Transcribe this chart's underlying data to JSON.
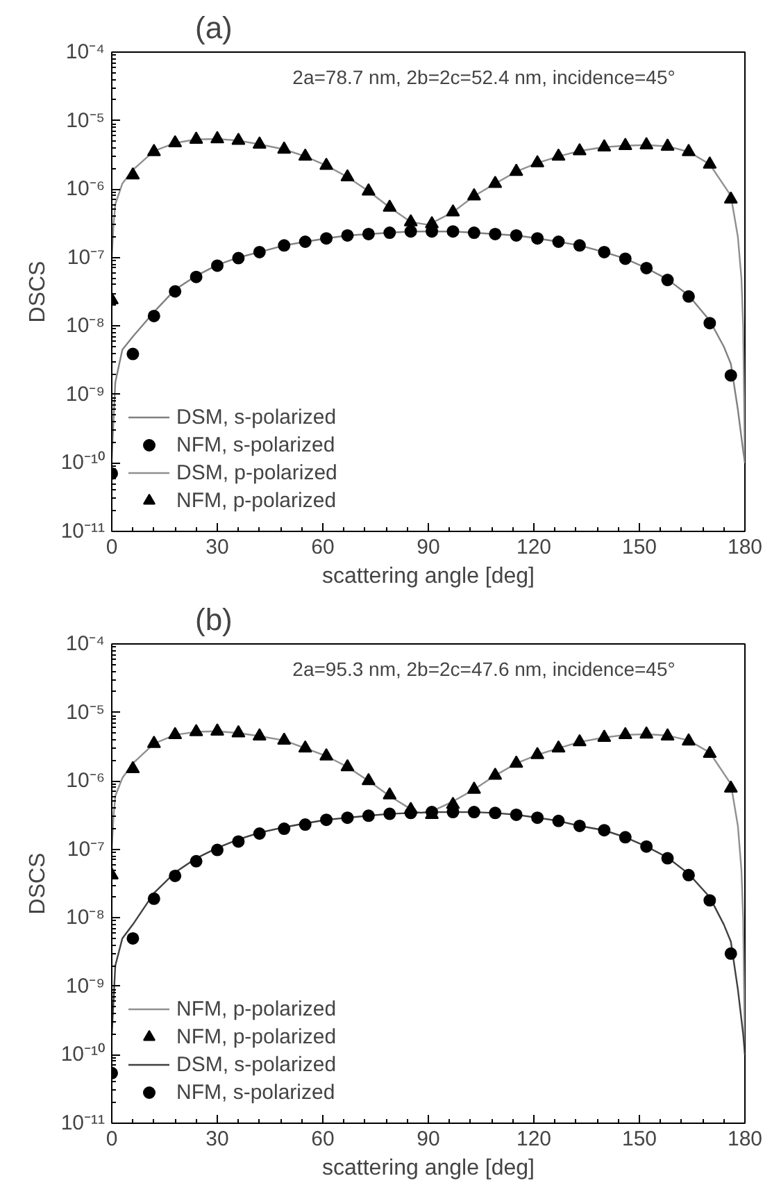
{
  "chart_data": [
    {
      "type": "line",
      "title": "(a)",
      "xlabel": "scattering angle [deg]",
      "ylabel": "DSCS",
      "log": "y",
      "grid": false,
      "legend": "bottom left",
      "annotations": [
        "2a=78.7 nm, 2b=2c=52.4 nm, incidence=45°"
      ],
      "xlim": [
        0,
        180
      ],
      "xticks": [
        0,
        30,
        60,
        90,
        120,
        150,
        180
      ],
      "ylim": [
        1e-11,
        0.0001
      ],
      "yticks": [
        {
          "value": 1e-11,
          "label": "10⁻¹¹"
        },
        {
          "value": 1e-10,
          "label": "10⁻¹⁰"
        },
        {
          "value": 1e-09,
          "label": "10⁻⁹"
        },
        {
          "value": 1e-08,
          "label": "10⁻⁸"
        },
        {
          "value": 1e-07,
          "label": "10⁻⁷"
        },
        {
          "value": 1e-06,
          "label": "10⁻⁶"
        },
        {
          "value": 1e-05,
          "label": "10⁻⁵"
        },
        {
          "value": 0.0001,
          "label": "10⁻⁴"
        }
      ],
      "series": [
        {
          "name": "DSM, s-polarized",
          "color": "#808080",
          "x": [
            0,
            1,
            3,
            6,
            12,
            18,
            24,
            30,
            36,
            42,
            49,
            55,
            61,
            67,
            73,
            79,
            85,
            91,
            97,
            103,
            109,
            115,
            121,
            127,
            133,
            140,
            146,
            152,
            158,
            164,
            170,
            174,
            176,
            178,
            179.5,
            180
          ],
          "values": [
            1.2e-10,
            1.5e-09,
            4.5e-09,
            7e-09,
            1.6e-08,
            3.4e-08,
            5.4e-08,
            7.8e-08,
            1e-07,
            1.2e-07,
            1.5e-07,
            1.7e-07,
            1.9e-07,
            2.1e-07,
            2.2e-07,
            2.3e-07,
            2.4e-07,
            2.4e-07,
            2.4e-07,
            2.3e-07,
            2.2e-07,
            2.1e-07,
            1.9e-07,
            1.7e-07,
            1.5e-07,
            1.2e-07,
            9.6e-08,
            7e-08,
            4.8e-08,
            2.8e-08,
            1.2e-08,
            5e-09,
            2.8e-09,
            6e-10,
            1.5e-10,
            1e-10
          ]
        },
        {
          "name": "NFM, s-polarized",
          "type": "scatter",
          "marker": "circle",
          "color": "#000000",
          "x": [
            0,
            6,
            12,
            18,
            24,
            30,
            36,
            42,
            49,
            55,
            61,
            67,
            73,
            79,
            85,
            91,
            97,
            103,
            109,
            115,
            121,
            127,
            133,
            140,
            146,
            152,
            158,
            164,
            170,
            176
          ],
          "values": [
            7e-11,
            3.9e-09,
            1.4e-08,
            3.2e-08,
            5.2e-08,
            7.6e-08,
            9.8e-08,
            1.2e-07,
            1.5e-07,
            1.7e-07,
            1.9e-07,
            2.1e-07,
            2.2e-07,
            2.3e-07,
            2.4e-07,
            2.4e-07,
            2.4e-07,
            2.3e-07,
            2.2e-07,
            2.1e-07,
            1.9e-07,
            1.7e-07,
            1.5e-07,
            1.2e-07,
            9.6e-08,
            7e-08,
            4.7e-08,
            2.7e-08,
            1.1e-08,
            1.9e-09
          ]
        },
        {
          "name": "DSM, p-polarized",
          "color": "#909090",
          "x": [
            0,
            0.5,
            1,
            3,
            6,
            12,
            18,
            24,
            30,
            36,
            42,
            49,
            55,
            61,
            67,
            73,
            79,
            85,
            90,
            97,
            103,
            109,
            115,
            121,
            127,
            133,
            140,
            146,
            152,
            158,
            164,
            170,
            176,
            178,
            179,
            179.5,
            180
          ],
          "values": [
            1e-07,
            3e-07,
            6e-07,
            1.2e-06,
            1.9e-06,
            3.6e-06,
            4.7e-06,
            5.3e-06,
            5.4e-06,
            5.1e-06,
            4.5e-06,
            3.8e-06,
            3e-06,
            2.2e-06,
            1.5e-06,
            9.3e-07,
            5.4e-07,
            3.3e-07,
            3e-07,
            4.6e-07,
            7.9e-07,
            1.2e-06,
            1.8e-06,
            2.4e-06,
            3e-06,
            3.6e-06,
            4.1e-06,
            4.3e-06,
            4.4e-06,
            4.2e-06,
            3.5e-06,
            2.3e-06,
            8e-07,
            2e-07,
            5e-08,
            1e-08,
            1e-10
          ]
        },
        {
          "name": "NFM, p-polarized",
          "type": "scatter",
          "marker": "triangle",
          "color": "#000000",
          "x": [
            0,
            6,
            12,
            18,
            24,
            30,
            36,
            42,
            49,
            55,
            61,
            67,
            73,
            79,
            85,
            91,
            97,
            103,
            109,
            115,
            121,
            127,
            133,
            140,
            146,
            152,
            158,
            164,
            170,
            176
          ],
          "values": [
            2.4e-08,
            1.6e-06,
            3.5e-06,
            4.7e-06,
            5.3e-06,
            5.4e-06,
            5.1e-06,
            4.5e-06,
            3.8e-06,
            3e-06,
            2.2e-06,
            1.5e-06,
            9.3e-07,
            5.4e-07,
            3.3e-07,
            3.1e-07,
            4.6e-07,
            7.9e-07,
            1.2e-06,
            1.8e-06,
            2.4e-06,
            3e-06,
            3.6e-06,
            4.1e-06,
            4.3e-06,
            4.4e-06,
            4.2e-06,
            3.5e-06,
            2.3e-06,
            7.1e-07
          ]
        }
      ]
    },
    {
      "type": "line",
      "title": "(b)",
      "xlabel": "scattering angle [deg]",
      "ylabel": "DSCS",
      "log": "y",
      "grid": false,
      "legend": "bottom left",
      "annotations": [
        "2a=95.3 nm, 2b=2c=47.6 nm, incidence=45°"
      ],
      "xlim": [
        0,
        180
      ],
      "xticks": [
        0,
        30,
        60,
        90,
        120,
        150,
        180
      ],
      "ylim": [
        1e-11,
        0.0001
      ],
      "yticks": [
        {
          "value": 1e-11,
          "label": "10⁻¹¹"
        },
        {
          "value": 1e-10,
          "label": "10⁻¹⁰"
        },
        {
          "value": 1e-09,
          "label": "10⁻⁹"
        },
        {
          "value": 1e-08,
          "label": "10⁻⁸"
        },
        {
          "value": 1e-07,
          "label": "10⁻⁷"
        },
        {
          "value": 1e-06,
          "label": "10⁻⁶"
        },
        {
          "value": 1e-05,
          "label": "10⁻⁵"
        },
        {
          "value": 0.0001,
          "label": "10⁻⁴"
        }
      ],
      "series": [
        {
          "name": "NFM, p-polarized",
          "color": "#909090",
          "x": [
            0,
            0.5,
            1,
            3,
            6,
            12,
            18,
            24,
            30,
            36,
            42,
            49,
            55,
            61,
            67,
            73,
            79,
            86,
            88,
            91,
            97,
            103,
            109,
            115,
            121,
            127,
            133,
            140,
            146,
            152,
            158,
            164,
            170,
            176,
            178,
            179,
            179.5,
            180
          ],
          "values": [
            1e-07,
            3e-07,
            6e-07,
            1.1e-06,
            1.8e-06,
            3.5e-06,
            4.7e-06,
            5.2e-06,
            5.3e-06,
            5e-06,
            4.5e-06,
            3.9e-06,
            3e-06,
            2.3e-06,
            1.6e-06,
            1e-06,
            6e-07,
            3.6e-07,
            3.4e-07,
            3.6e-07,
            5e-07,
            7.5e-07,
            1.2e-06,
            1.8e-06,
            2.4e-06,
            3e-06,
            3.7e-06,
            4.3e-06,
            4.7e-06,
            4.8e-06,
            4.6e-06,
            3.9e-06,
            2.6e-06,
            9e-07,
            2.2e-07,
            5e-08,
            1e-08,
            1e-10
          ]
        },
        {
          "name": "NFM, p-polarized",
          "type": "scatter",
          "marker": "triangle",
          "color": "#000000",
          "x": [
            0,
            6,
            12,
            18,
            24,
            30,
            36,
            42,
            49,
            55,
            61,
            67,
            73,
            79,
            85,
            91,
            97,
            103,
            109,
            115,
            121,
            127,
            133,
            140,
            146,
            152,
            158,
            164,
            170,
            176
          ],
          "values": [
            4.2e-08,
            1.5e-06,
            3.5e-06,
            4.7e-06,
            5.2e-06,
            5.3e-06,
            5e-06,
            4.5e-06,
            3.9e-06,
            3e-06,
            2.3e-06,
            1.6e-06,
            1e-06,
            6.2e-07,
            3.8e-07,
            3.2e-07,
            4.5e-07,
            7.5e-07,
            1.2e-06,
            1.8e-06,
            2.4e-06,
            3e-06,
            3.7e-06,
            4.3e-06,
            4.7e-06,
            4.8e-06,
            4.5e-06,
            3.8e-06,
            2.5e-06,
            7.8e-07
          ]
        },
        {
          "name": "DSM, s-polarized",
          "color": "#404040",
          "x": [
            0,
            1,
            3,
            6,
            12,
            18,
            24,
            30,
            36,
            42,
            49,
            55,
            61,
            67,
            73,
            79,
            85,
            91,
            97,
            103,
            109,
            115,
            121,
            127,
            133,
            140,
            146,
            152,
            158,
            164,
            170,
            174,
            176,
            178,
            179.5,
            180
          ],
          "values": [
            1.9e-10,
            2e-09,
            5e-09,
            8e-09,
            2.3e-08,
            4.6e-08,
            7.4e-08,
            1.05e-07,
            1.4e-07,
            1.75e-07,
            2.1e-07,
            2.4e-07,
            2.7e-07,
            2.9e-07,
            3.1e-07,
            3.3e-07,
            3.4e-07,
            3.5e-07,
            3.5e-07,
            3.5e-07,
            3.4e-07,
            3.2e-07,
            2.9e-07,
            2.6e-07,
            2.2e-07,
            1.9e-07,
            1.5e-07,
            1.1e-07,
            7.6e-08,
            4.4e-08,
            2e-08,
            8e-09,
            4.5e-09,
            9e-10,
            2e-10,
            1e-10
          ]
        },
        {
          "name": "NFM, s-polarized",
          "type": "scatter",
          "marker": "circle",
          "color": "#000000",
          "x": [
            0,
            6,
            12,
            18,
            24,
            30,
            36,
            42,
            49,
            55,
            61,
            67,
            73,
            79,
            85,
            91,
            97,
            103,
            109,
            115,
            121,
            127,
            133,
            140,
            146,
            152,
            158,
            164,
            170,
            176
          ],
          "values": [
            5.4e-11,
            5e-09,
            1.9e-08,
            4.1e-08,
            6.7e-08,
            9.8e-08,
            1.3e-07,
            1.7e-07,
            2e-07,
            2.3e-07,
            2.7e-07,
            2.9e-07,
            3.1e-07,
            3.3e-07,
            3.4e-07,
            3.5e-07,
            3.5e-07,
            3.5e-07,
            3.4e-07,
            3.2e-07,
            2.9e-07,
            2.6e-07,
            2.2e-07,
            1.9e-07,
            1.5e-07,
            1.1e-07,
            7.4e-08,
            4.2e-08,
            1.8e-08,
            3e-09
          ]
        }
      ]
    }
  ]
}
